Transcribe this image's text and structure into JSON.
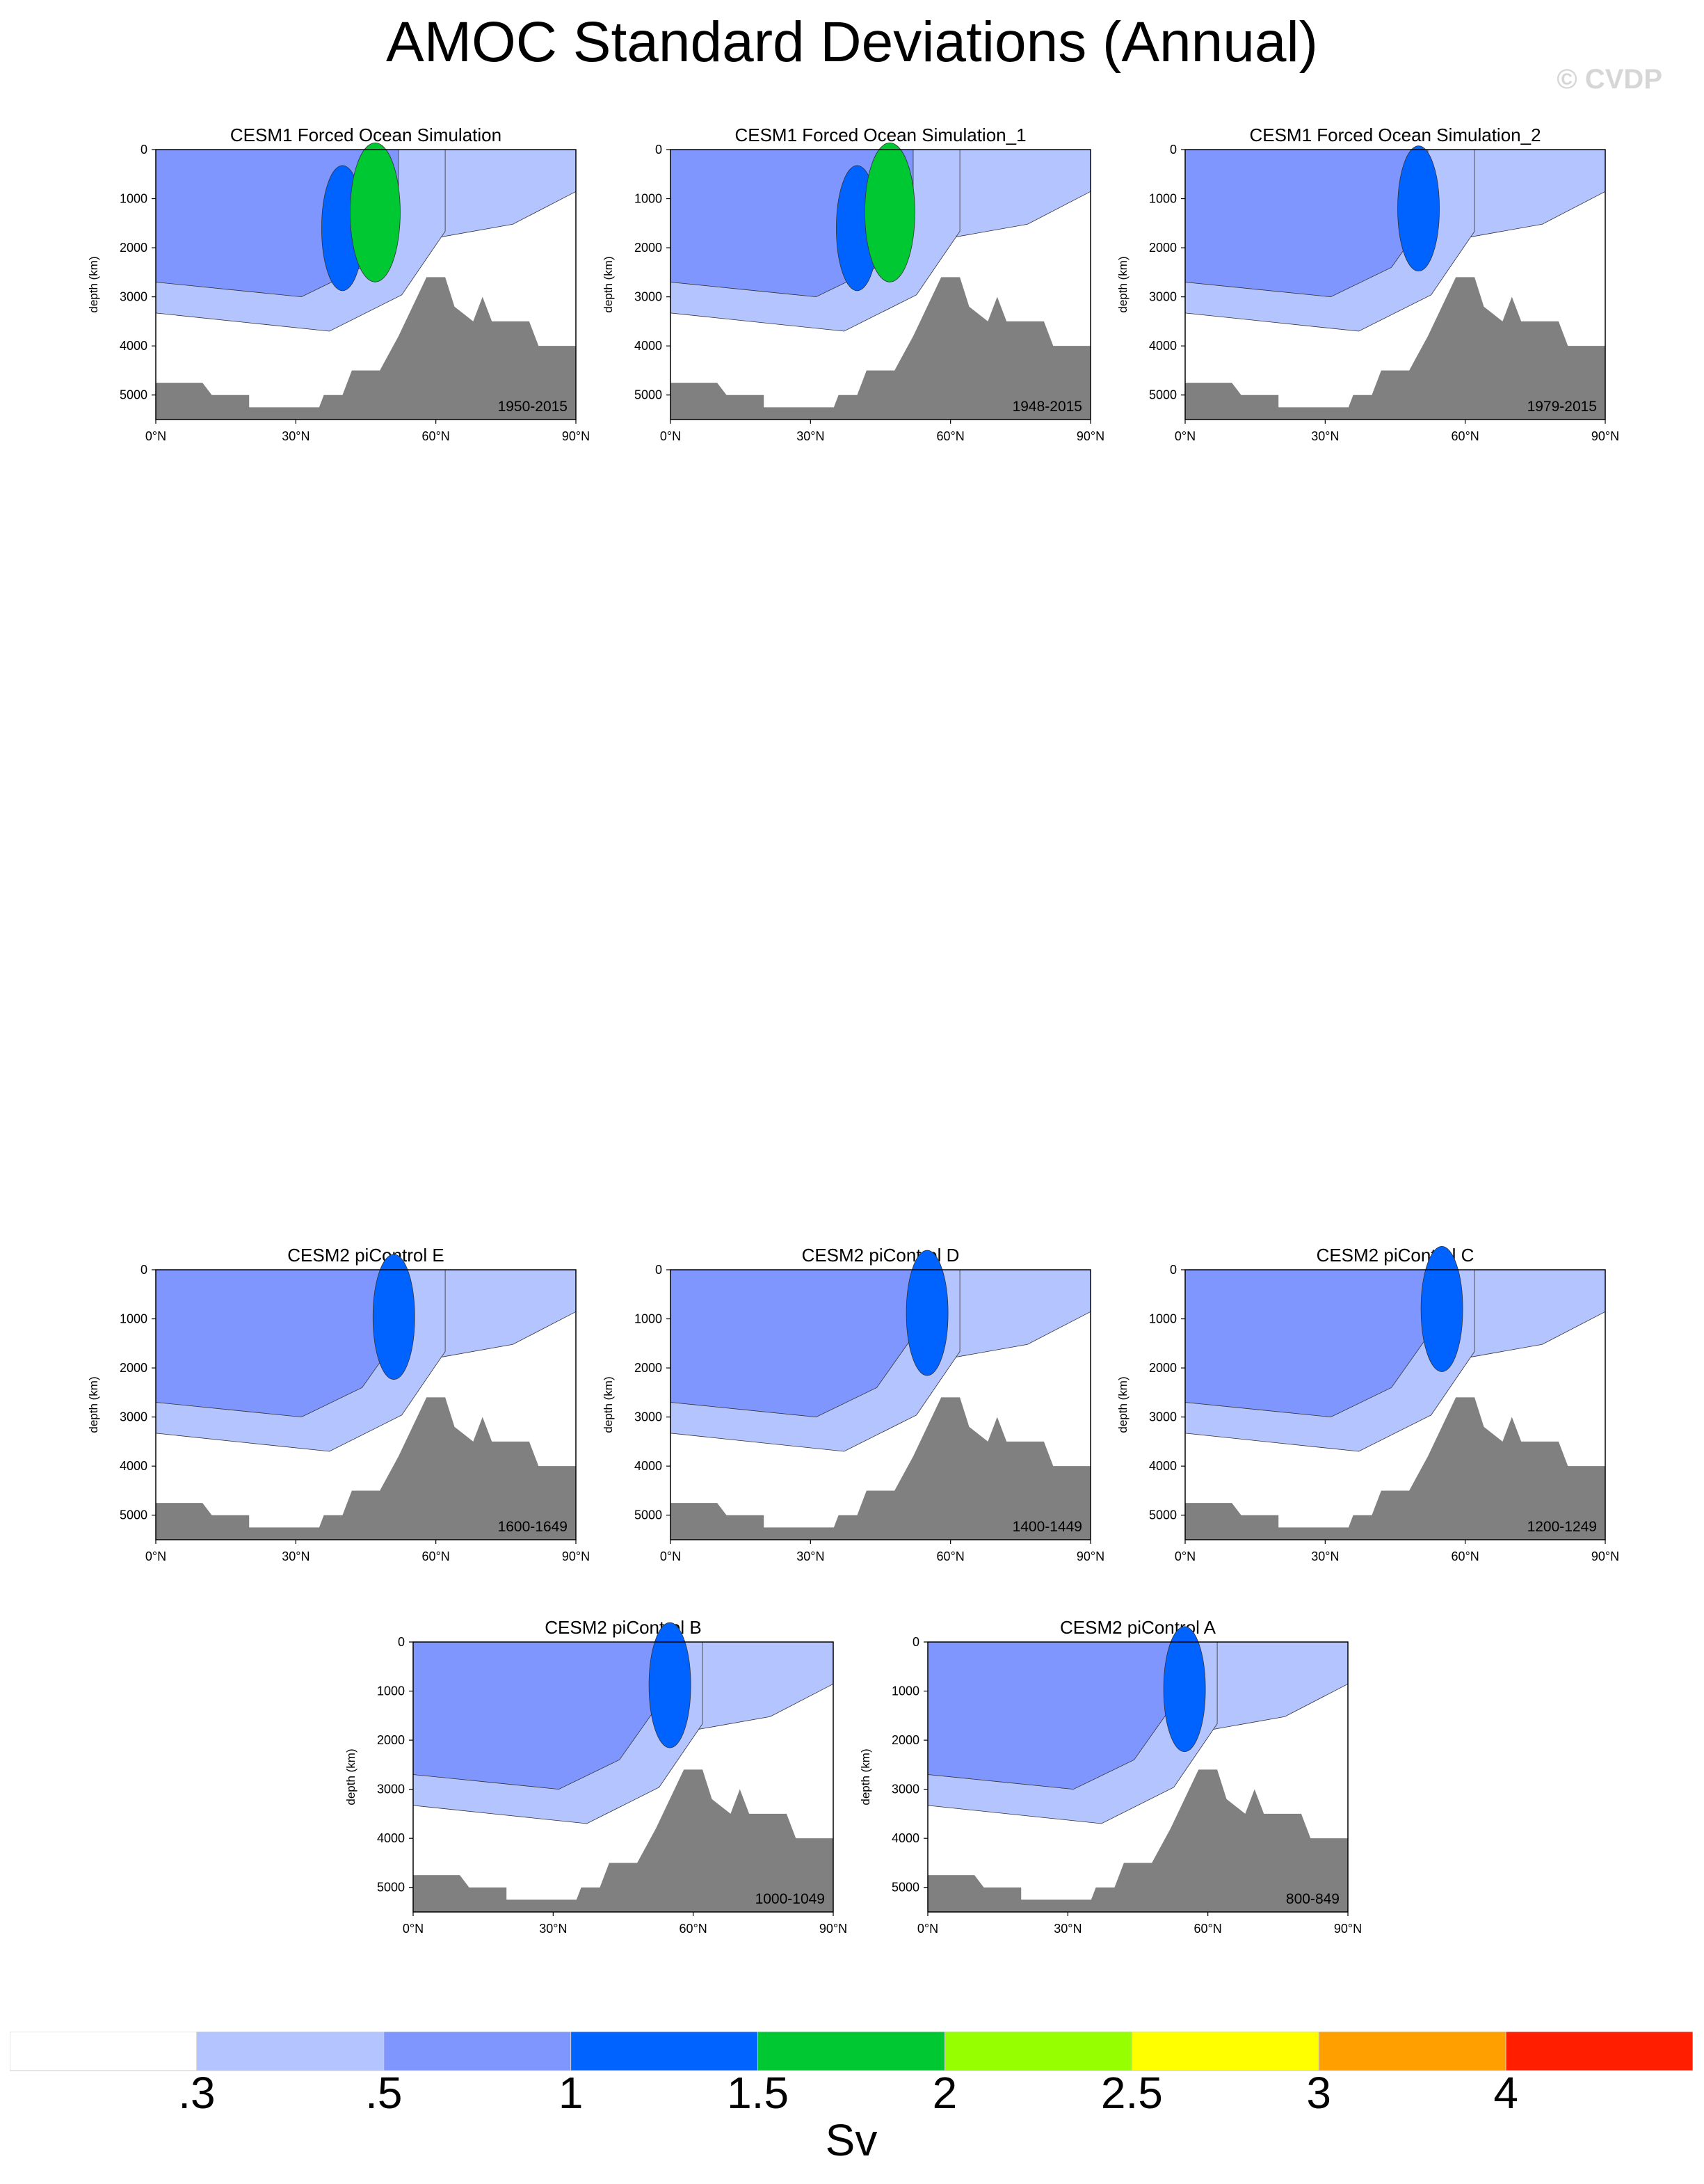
{
  "title": "AMOC Standard Deviations (Annual)",
  "watermark": "© CVDP",
  "chart_data": {
    "type": "heatmap",
    "units": "Sv",
    "levels": [
      ".3",
      ".5",
      "1",
      "1.5",
      "2",
      "2.5",
      "3",
      "4"
    ],
    "level_colors": [
      "#ffffff",
      "#b4c4ff",
      "#8096ff",
      "#0062ff",
      "#00c832",
      "#96ff00",
      "#ffff00",
      "#ffa000",
      "#ff1e00"
    ],
    "ocean_floor_color": "#808080",
    "x_ticks": [
      "0°N",
      "30°N",
      "60°N",
      "90°N"
    ],
    "xlim": [
      0,
      90
    ],
    "y_ticks": [
      "0",
      "1000",
      "2000",
      "3000",
      "4000",
      "5000"
    ],
    "ylim": [
      5500,
      0
    ],
    "ylabel": "depth (km)",
    "panels": [
      {
        "title": "CESM1 Forced Ocean Simulation",
        "period": "1950-2015",
        "contour": [
          [
            0.3,
            0,
            0.3,
            3000
          ],
          [
            0.5,
            0,
            0.5,
            2100
          ],
          [
            1,
            35,
            2,
            2000
          ],
          [
            1.5,
            42,
            2.2,
            1600
          ]
        ]
      },
      {
        "title": "CESM1 Forced Ocean Simulation_1",
        "period": "1948-2015",
        "contour": [
          [
            0.3,
            0,
            0.3,
            3000
          ],
          [
            0.5,
            0,
            0.5,
            2100
          ],
          [
            1,
            35,
            2.2,
            2000
          ],
          [
            1.5,
            42,
            2.2,
            1600
          ]
        ]
      },
      {
        "title": "CESM1 Forced Ocean Simulation_2",
        "period": "1979-2015",
        "contour": [
          [
            0.3,
            0,
            0.3,
            3000
          ],
          [
            0.5,
            0,
            0.5,
            2200
          ],
          [
            1,
            45,
            1.6,
            1500
          ]
        ]
      },
      {
        "title": "CESM2 piControl E",
        "period": "1600-1649",
        "contour": [
          [
            0.3,
            0,
            0.3,
            2700
          ],
          [
            0.5,
            0,
            0.5,
            2000
          ],
          [
            1,
            46,
            1.1,
            1200
          ]
        ]
      },
      {
        "title": "CESM2 piControl D",
        "period": "1400-1449",
        "contour": [
          [
            0.3,
            0,
            0.3,
            2700
          ],
          [
            0.5,
            0,
            0.5,
            2000
          ],
          [
            1,
            50,
            1.2,
            1100
          ]
        ]
      },
      {
        "title": "CESM2 piControl C",
        "period": "1200-1249",
        "contour": [
          [
            0.3,
            0,
            0.3,
            2700
          ],
          [
            0.5,
            0,
            0.5,
            2000
          ],
          [
            1,
            50,
            1.1,
            1000
          ]
        ]
      },
      {
        "title": "CESM2 piControl B",
        "period": "1000-1049",
        "contour": [
          [
            0.3,
            0,
            0.3,
            2700
          ],
          [
            0.5,
            0,
            0.5,
            2000
          ],
          [
            1,
            50,
            1.3,
            1100
          ]
        ]
      },
      {
        "title": "CESM2 piControl A",
        "period": "800-849",
        "contour": [
          [
            0.3,
            0,
            0.3,
            2700
          ],
          [
            0.5,
            0,
            0.5,
            2000
          ],
          [
            1,
            50,
            1.3,
            1200
          ]
        ]
      }
    ]
  }
}
